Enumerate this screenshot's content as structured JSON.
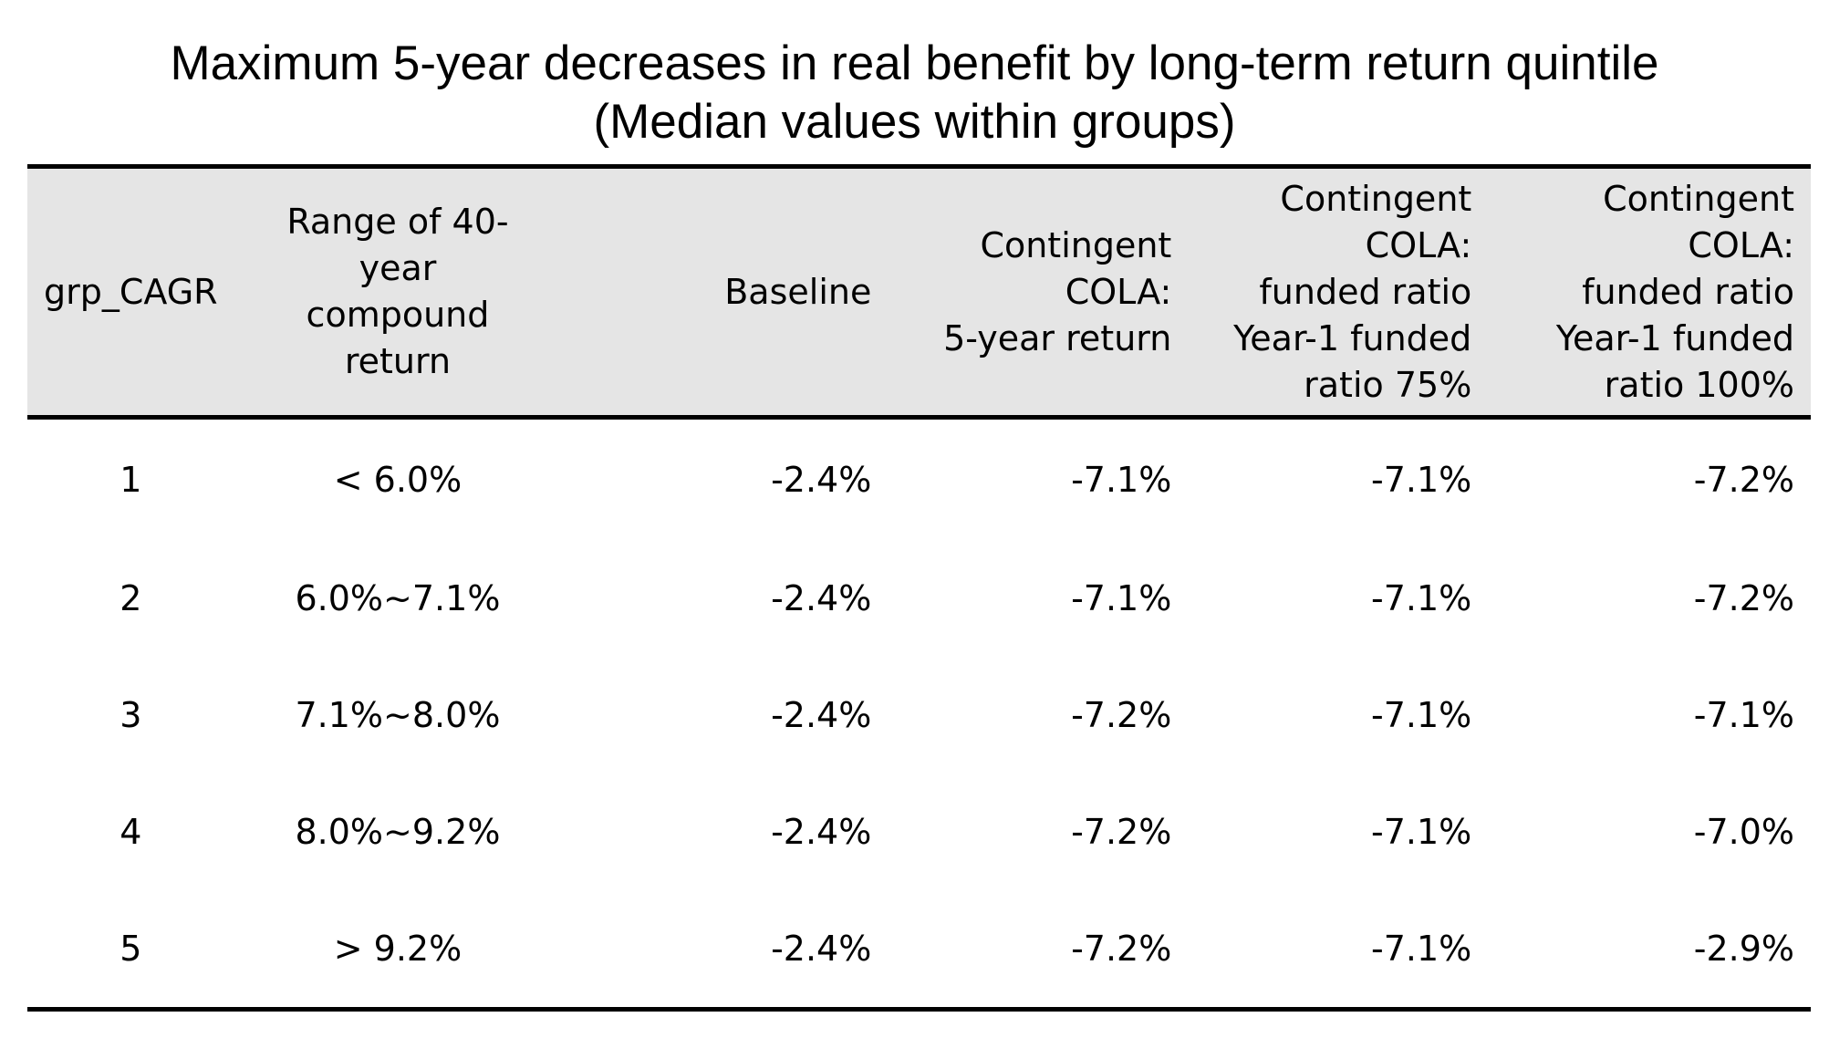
{
  "title": {
    "line1": "Maximum 5-year decreases in real benefit by long-term return quintile",
    "line2": "(Median values within groups)"
  },
  "table": {
    "headers": [
      "grp_CAGR",
      "Range of 40-year\ncompound return",
      "Baseline",
      "Contingent\nCOLA:\n5-year return",
      "Contingent\nCOLA:\nfunded ratio\nYear-1 funded\nratio 75%",
      "Contingent\nCOLA:\nfunded ratio\nYear-1 funded\nratio 100%"
    ],
    "rows": [
      [
        "1",
        "< 6.0%",
        "-2.4%",
        "-7.1%",
        "-7.1%",
        "-7.2%"
      ],
      [
        "2",
        "6.0%~7.1%",
        "-2.4%",
        "-7.1%",
        "-7.1%",
        "-7.2%"
      ],
      [
        "3",
        "7.1%~8.0%",
        "-2.4%",
        "-7.2%",
        "-7.1%",
        "-7.1%"
      ],
      [
        "4",
        "8.0%~9.2%",
        "-2.4%",
        "-7.2%",
        "-7.1%",
        "-7.0%"
      ],
      [
        "5",
        "> 9.2%",
        "-2.4%",
        "-7.2%",
        "-7.1%",
        "-2.9%"
      ]
    ]
  },
  "colors": {
    "header_background": "#e5e5e5",
    "rule": "#000000",
    "text": "#000000"
  }
}
